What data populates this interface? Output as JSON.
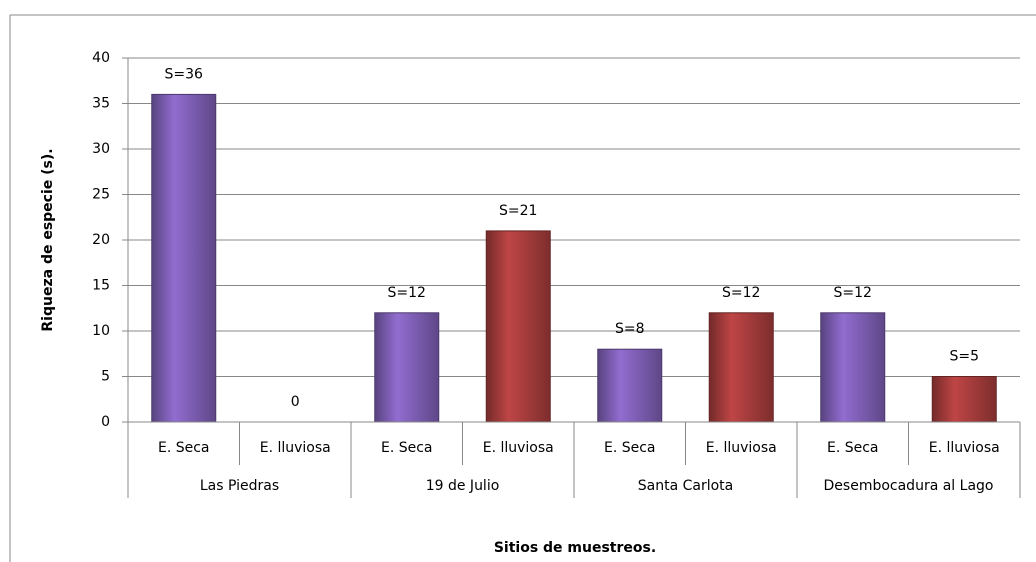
{
  "chart_data": {
    "type": "bar",
    "ylabel": "Riqueza de especie (s).",
    "xlabel": "Sitios de muestreos.",
    "categories": [
      "E. Seca",
      "E. lluviosa",
      "E. Seca",
      "E. lluviosa",
      "E. Seca",
      "E. lluviosa",
      "E. Seca",
      "E. lluviosa"
    ],
    "group_labels": [
      "Las Piedras",
      "19 de Julio",
      "Santa Carlota",
      "Desembocadura al Lago"
    ],
    "values": [
      36,
      0,
      12,
      21,
      8,
      12,
      12,
      5
    ],
    "value_labels": [
      "S=36",
      "0",
      "S=12",
      "S=21",
      "S=8",
      "S=12",
      "S=12",
      "S=5"
    ],
    "colors": [
      "#7e5fb5",
      "#a63c3c",
      "#7e5fb5",
      "#a63c3c",
      "#7e5fb5",
      "#a63c3c",
      "#7e5fb5",
      "#a63c3c"
    ],
    "ylim": [
      0,
      40
    ],
    "yticks": [
      0,
      5,
      10,
      15,
      20,
      25,
      30,
      35,
      40
    ],
    "grid": true
  }
}
